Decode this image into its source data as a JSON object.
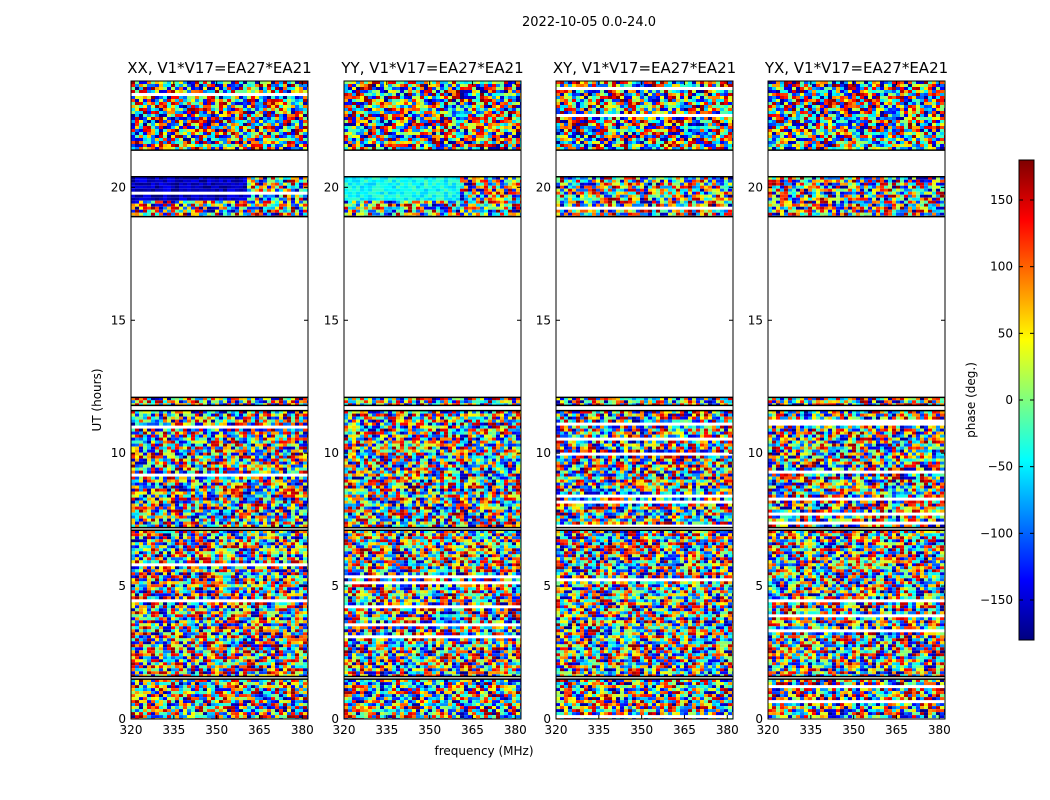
{
  "figure": {
    "title": "2022-10-05 0.0-24.0"
  },
  "colorbar": {
    "label": "phase (deg.)",
    "range": [
      -180,
      180
    ],
    "ticks": [
      "−150",
      "−100",
      "−50",
      "0",
      "50",
      "100",
      "150"
    ],
    "tick_values": [
      -150,
      -100,
      -50,
      0,
      50,
      100,
      150
    ],
    "colormap": "jet",
    "colormap_stops": [
      "#00007f",
      "#0000ff",
      "#007fff",
      "#00ffff",
      "#7fff7f",
      "#ffff00",
      "#ff7f00",
      "#ff0000",
      "#7f0000"
    ]
  },
  "chart_data": [
    {
      "type": "heatmap",
      "title": "XX, V1*V17=EA27*EA21",
      "xlabel": "",
      "ylabel": "UT (hours)",
      "xlim": [
        320,
        382
      ],
      "ylim": [
        0,
        24
      ],
      "xticks": [
        "320",
        "335",
        "350",
        "365",
        "380"
      ],
      "yticks": [
        "0",
        "5",
        "10",
        "15",
        "20"
      ],
      "value": "phase (deg.)",
      "data_row_bands_hours": [
        [
          0.0,
          1.5
        ],
        [
          1.6,
          7.1
        ],
        [
          7.2,
          11.6
        ],
        [
          11.8,
          12.1
        ],
        [
          18.9,
          20.4
        ],
        [
          21.4,
          24.0
        ]
      ],
      "dominant_phase_band": {
        "ut_hours": [
          19.5,
          20.4
        ],
        "freq_mhz": [
          320,
          360
        ],
        "phase_deg": -160
      }
    },
    {
      "type": "heatmap",
      "title": "YY, V1*V17=EA27*EA21",
      "xlabel": "frequency (MHz)",
      "ylabel": "",
      "xlim": [
        320,
        382
      ],
      "ylim": [
        0,
        24
      ],
      "xticks": [
        "320",
        "335",
        "350",
        "365",
        "380"
      ],
      "yticks": [
        "0",
        "5",
        "10",
        "15",
        "20"
      ],
      "value": "phase (deg.)",
      "data_row_bands_hours": [
        [
          0.0,
          1.5
        ],
        [
          1.6,
          7.1
        ],
        [
          7.2,
          11.6
        ],
        [
          11.8,
          12.1
        ],
        [
          18.9,
          20.4
        ],
        [
          21.4,
          24.0
        ]
      ],
      "dominant_phase_band": {
        "ut_hours": [
          19.5,
          20.4
        ],
        "freq_mhz": [
          320,
          360
        ],
        "phase_deg": -40
      }
    },
    {
      "type": "heatmap",
      "title": "XY, V1*V17=EA27*EA21",
      "xlabel": "",
      "ylabel": "",
      "xlim": [
        320,
        382
      ],
      "ylim": [
        0,
        24
      ],
      "xticks": [
        "320",
        "335",
        "350",
        "365",
        "380"
      ],
      "yticks": [
        "0",
        "5",
        "10",
        "15",
        "20"
      ],
      "value": "phase (deg.)",
      "data_row_bands_hours": [
        [
          0.0,
          1.5
        ],
        [
          1.6,
          7.1
        ],
        [
          7.2,
          11.6
        ],
        [
          11.8,
          12.1
        ],
        [
          18.9,
          20.4
        ],
        [
          21.4,
          24.0
        ]
      ]
    },
    {
      "type": "heatmap",
      "title": "YX, V1*V17=EA27*EA21",
      "xlabel": "",
      "ylabel": "",
      "xlim": [
        320,
        382
      ],
      "ylim": [
        0,
        24
      ],
      "xticks": [
        "320",
        "335",
        "350",
        "365",
        "380"
      ],
      "yticks": [
        "0",
        "5",
        "10",
        "15",
        "20"
      ],
      "value": "phase (deg.)",
      "data_row_bands_hours": [
        [
          0.0,
          1.5
        ],
        [
          1.6,
          7.1
        ],
        [
          7.2,
          11.6
        ],
        [
          11.8,
          12.1
        ],
        [
          18.9,
          20.4
        ],
        [
          21.4,
          24.0
        ]
      ]
    }
  ]
}
